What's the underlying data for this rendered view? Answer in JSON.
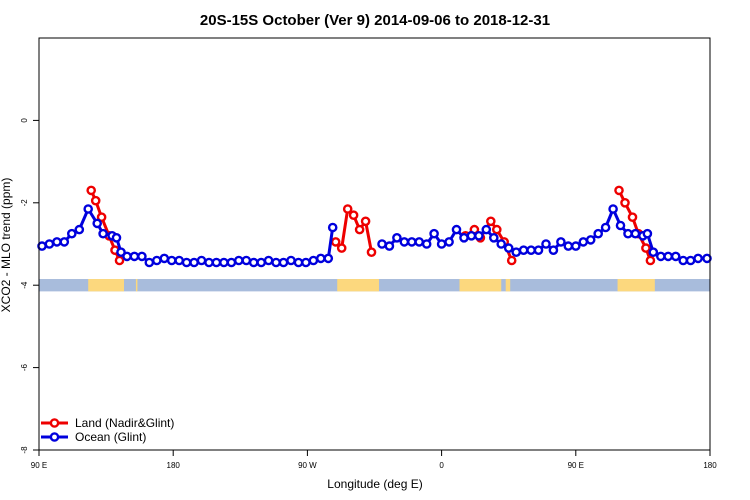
{
  "chart_data": {
    "type": "line",
    "title": "20S-15S October (Ver 9)   2014-09-06 to 2018-12-31",
    "xlabel": "Longitude (deg E)",
    "ylabel": "XCO2 - MLO trend (ppm)",
    "xlim": [
      90,
      540
    ],
    "ylim": [
      -8,
      2
    ],
    "x_ticks": [
      {
        "value": 90,
        "label": "90 E"
      },
      {
        "value": 180,
        "label": "180"
      },
      {
        "value": 270,
        "label": "90 W"
      },
      {
        "value": 360,
        "label": "0"
      },
      {
        "value": 450,
        "label": "90 E"
      },
      {
        "value": 540,
        "label": "180"
      }
    ],
    "y_ticks": [
      {
        "value": -8,
        "label": "-8"
      },
      {
        "value": -6,
        "label": "-6"
      },
      {
        "value": -4,
        "label": "-4"
      },
      {
        "value": -2,
        "label": "-2"
      },
      {
        "value": 0,
        "label": "0"
      }
    ],
    "legend": {
      "position": "bottom-left",
      "entries": [
        {
          "label": "Land (Nadir&Glint)",
          "color": "#ee0000"
        },
        {
          "label": "Ocean (Glint)",
          "color": "#0000dd"
        }
      ]
    },
    "land_mask": {
      "y_band": [
        -4.15,
        -3.85
      ],
      "ocean_color": "#a8bcdc",
      "land_color": "#fcd87e",
      "land_ranges": [
        [
          123,
          147
        ],
        [
          155,
          156
        ],
        [
          290,
          318
        ],
        [
          372,
          400
        ],
        [
          403,
          406
        ],
        [
          478,
          503
        ]
      ]
    },
    "series": [
      {
        "name": "Land (Nadir&Glint)",
        "color": "#ee0000",
        "segments": [
          [
            [
              125,
              -1.7
            ],
            [
              128,
              -1.95
            ],
            [
              132,
              -2.35
            ],
            [
              137,
              -2.8
            ],
            [
              141,
              -3.15
            ],
            [
              144,
              -3.4
            ]
          ],
          [
            [
              289,
              -2.95
            ],
            [
              293,
              -3.1
            ],
            [
              297,
              -2.15
            ],
            [
              301,
              -2.3
            ],
            [
              305,
              -2.65
            ],
            [
              309,
              -2.45
            ],
            [
              313,
              -3.2
            ]
          ],
          [
            [
              376,
              -2.8
            ],
            [
              382,
              -2.65
            ],
            [
              386,
              -2.85
            ],
            [
              393,
              -2.45
            ],
            [
              397,
              -2.65
            ],
            [
              402,
              -2.95
            ],
            [
              407,
              -3.4
            ]
          ],
          [
            [
              479,
              -1.7
            ],
            [
              483,
              -2.0
            ],
            [
              488,
              -2.35
            ],
            [
              492,
              -2.75
            ],
            [
              497,
              -3.1
            ],
            [
              500,
              -3.4
            ]
          ]
        ]
      },
      {
        "name": "Ocean (Glint)",
        "color": "#0000dd",
        "segments": [
          [
            [
              92,
              -3.05
            ],
            [
              97,
              -3.0
            ],
            [
              102,
              -2.95
            ],
            [
              107,
              -2.95
            ],
            [
              112,
              -2.75
            ],
            [
              117,
              -2.65
            ],
            [
              123,
              -2.15
            ],
            [
              129,
              -2.5
            ],
            [
              133,
              -2.75
            ],
            [
              139,
              -2.8
            ],
            [
              142,
              -2.85
            ],
            [
              145,
              -3.2
            ],
            [
              149,
              -3.3
            ],
            [
              154,
              -3.3
            ],
            [
              159,
              -3.3
            ],
            [
              164,
              -3.45
            ],
            [
              169,
              -3.4
            ],
            [
              174,
              -3.35
            ],
            [
              179,
              -3.4
            ],
            [
              184,
              -3.4
            ],
            [
              189,
              -3.45
            ],
            [
              194,
              -3.45
            ],
            [
              199,
              -3.4
            ],
            [
              204,
              -3.45
            ],
            [
              209,
              -3.45
            ],
            [
              214,
              -3.45
            ],
            [
              219,
              -3.45
            ],
            [
              224,
              -3.4
            ],
            [
              229,
              -3.4
            ],
            [
              234,
              -3.45
            ],
            [
              239,
              -3.45
            ],
            [
              244,
              -3.4
            ],
            [
              249,
              -3.45
            ],
            [
              254,
              -3.45
            ],
            [
              259,
              -3.4
            ],
            [
              264,
              -3.45
            ],
            [
              269,
              -3.45
            ],
            [
              274,
              -3.4
            ],
            [
              279,
              -3.35
            ],
            [
              284,
              -3.35
            ],
            [
              287,
              -2.6
            ]
          ],
          [
            [
              320,
              -3.0
            ],
            [
              325,
              -3.05
            ],
            [
              330,
              -2.85
            ],
            [
              335,
              -2.95
            ],
            [
              340,
              -2.95
            ],
            [
              345,
              -2.95
            ],
            [
              350,
              -3.0
            ],
            [
              355,
              -2.75
            ],
            [
              360,
              -3.0
            ],
            [
              365,
              -2.95
            ],
            [
              370,
              -2.65
            ],
            [
              375,
              -2.85
            ],
            [
              380,
              -2.8
            ],
            [
              385,
              -2.8
            ],
            [
              390,
              -2.65
            ],
            [
              395,
              -2.85
            ],
            [
              400,
              -3.0
            ],
            [
              405,
              -3.1
            ],
            [
              410,
              -3.2
            ],
            [
              415,
              -3.15
            ],
            [
              420,
              -3.15
            ],
            [
              425,
              -3.15
            ],
            [
              430,
              -3.0
            ],
            [
              435,
              -3.15
            ],
            [
              440,
              -2.95
            ],
            [
              445,
              -3.05
            ],
            [
              450,
              -3.05
            ],
            [
              455,
              -2.95
            ],
            [
              460,
              -2.9
            ],
            [
              465,
              -2.75
            ],
            [
              470,
              -2.6
            ],
            [
              475,
              -2.15
            ],
            [
              480,
              -2.55
            ],
            [
              485,
              -2.75
            ],
            [
              490,
              -2.75
            ],
            [
              495,
              -2.8
            ],
            [
              498,
              -2.75
            ],
            [
              502,
              -3.2
            ],
            [
              507,
              -3.3
            ],
            [
              512,
              -3.3
            ],
            [
              517,
              -3.3
            ],
            [
              522,
              -3.4
            ],
            [
              527,
              -3.4
            ],
            [
              532,
              -3.35
            ],
            [
              538,
              -3.35
            ]
          ]
        ]
      }
    ]
  }
}
